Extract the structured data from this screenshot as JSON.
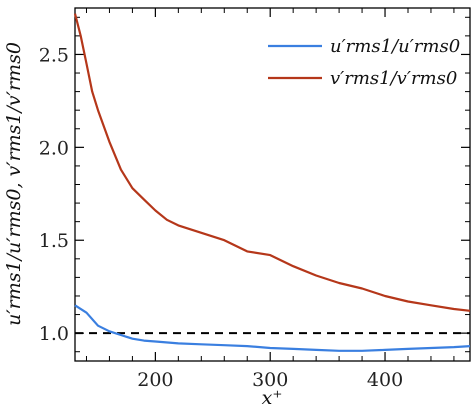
{
  "chart_data": {
    "type": "line",
    "xlabel": "x⁺",
    "ylabel": "u′rms1/u′rms0, v′rms1/v′rms0",
    "xlim": [
      130,
      474
    ],
    "ylim": [
      0.85,
      2.75
    ],
    "xticks": [
      200,
      300,
      400
    ],
    "yticks": [
      1.0,
      1.5,
      2.0,
      2.5
    ],
    "xtick_labels": [
      "200",
      "300",
      "400"
    ],
    "ytick_labels": [
      "1.0",
      "1.5",
      "2.0",
      "2.5"
    ],
    "legend_position": "top-right",
    "reference_line": {
      "y": 1.0,
      "style": "dashed",
      "color": "#000000"
    },
    "series": [
      {
        "name": "u′rms1/u′rms0",
        "color": "#3a7fe0",
        "x": [
          130,
          140,
          150,
          160,
          170,
          180,
          190,
          200,
          220,
          240,
          260,
          280,
          300,
          320,
          340,
          360,
          380,
          400,
          420,
          440,
          460,
          474
        ],
        "y": [
          1.15,
          1.11,
          1.04,
          1.01,
          0.99,
          0.97,
          0.96,
          0.955,
          0.945,
          0.94,
          0.935,
          0.93,
          0.92,
          0.915,
          0.91,
          0.905,
          0.905,
          0.91,
          0.915,
          0.92,
          0.925,
          0.93
        ]
      },
      {
        "name": "v′rms1/v′rms0",
        "color": "#b5371a",
        "x": [
          130,
          135,
          140,
          145,
          150,
          160,
          170,
          180,
          190,
          200,
          210,
          220,
          240,
          260,
          280,
          300,
          320,
          340,
          360,
          380,
          400,
          420,
          440,
          460,
          474
        ],
        "y": [
          2.72,
          2.6,
          2.45,
          2.3,
          2.2,
          2.03,
          1.88,
          1.78,
          1.72,
          1.66,
          1.61,
          1.58,
          1.54,
          1.5,
          1.44,
          1.42,
          1.36,
          1.31,
          1.27,
          1.24,
          1.2,
          1.17,
          1.15,
          1.13,
          1.12
        ]
      }
    ]
  }
}
